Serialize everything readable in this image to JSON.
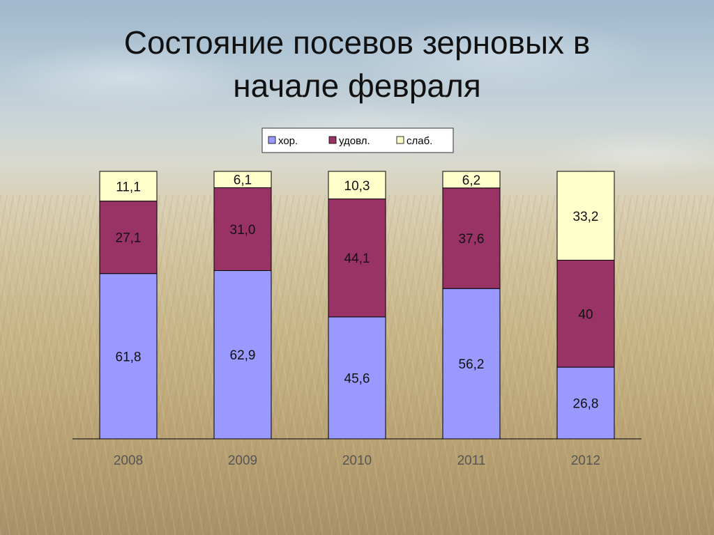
{
  "slide": {
    "title_line1": "Состояние посевов зерновых в",
    "title_line2": "начале февраля"
  },
  "chart_data": {
    "type": "bar",
    "stacked": true,
    "title": "",
    "xlabel": "",
    "ylabel": "",
    "ylim": [
      0,
      100
    ],
    "grid": false,
    "legend_position": "top",
    "categories": [
      "2008",
      "2009",
      "2010",
      "2011",
      "2012"
    ],
    "series": [
      {
        "name": "хор.",
        "color": "#9999ff",
        "values": [
          61.8,
          62.9,
          45.6,
          56.2,
          26.8
        ],
        "labels": [
          "61,8",
          "62,9",
          "45,6",
          "56,2",
          "26,8"
        ]
      },
      {
        "name": "удовл.",
        "color": "#993366",
        "values": [
          27.1,
          31.0,
          44.1,
          37.6,
          40
        ],
        "labels": [
          "27,1",
          "31,0",
          "44,1",
          "37,6",
          "40"
        ]
      },
      {
        "name": "слаб.",
        "color": "#ffffcc",
        "values": [
          11.1,
          6.1,
          10.3,
          6.2,
          33.2
        ],
        "labels": [
          "11,1",
          "6,1",
          "10,3",
          "6,2",
          "33,2"
        ]
      }
    ]
  }
}
